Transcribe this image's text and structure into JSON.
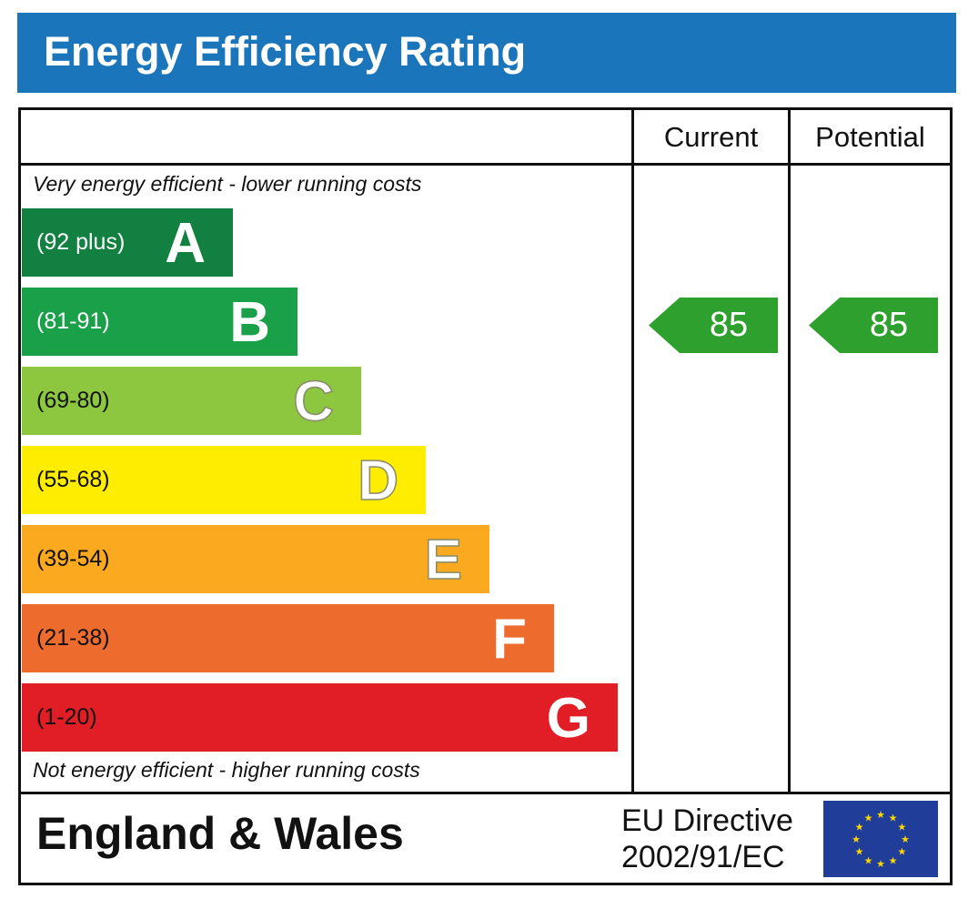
{
  "title": "Energy Efficiency Rating",
  "colors": {
    "banner": "#1a75bb",
    "indicator": "#2ea02e",
    "eu_flag": "#1f3d99",
    "eu_stars": "#ffd700"
  },
  "columns": {
    "current": "Current",
    "potential": "Potential"
  },
  "top_caption": "Very energy efficient - lower running costs",
  "bottom_caption": "Not energy efficient - higher running costs",
  "footer": {
    "region": "England & Wales",
    "directive_line1": "EU Directive",
    "directive_line2": "2002/91/EC"
  },
  "chart_data": {
    "type": "bar",
    "categories": [
      "A",
      "B",
      "C",
      "D",
      "E",
      "F",
      "G"
    ],
    "ranges": [
      "(92 plus)",
      "(81-91)",
      "(69-80)",
      "(55-68)",
      "(39-54)",
      "(21-38)",
      "(1-20)"
    ],
    "colors": [
      "#128041",
      "#1ba04a",
      "#8dc63f",
      "#ffed00",
      "#fbaa1f",
      "#ed6b2d",
      "#e11e26"
    ],
    "range_text_colors": [
      "#ffffff",
      "#ffffff",
      "#111111",
      "#111111",
      "#111111",
      "#111111",
      "#111111"
    ],
    "current": 85,
    "potential": 85
  }
}
